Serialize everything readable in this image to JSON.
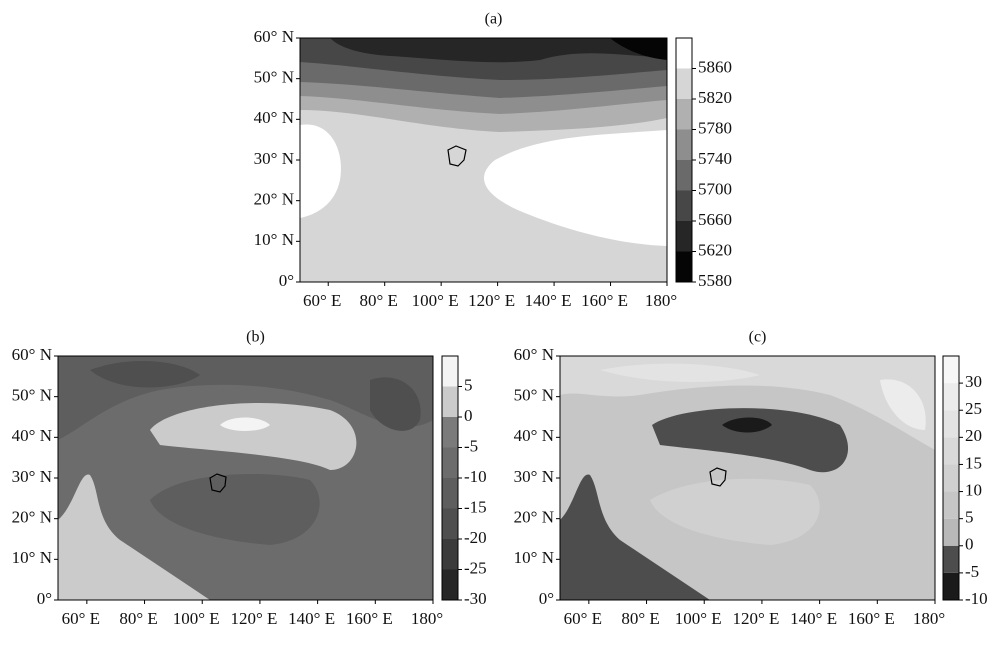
{
  "panels": [
    {
      "label": "(a)",
      "xlim": [
        50,
        180
      ],
      "ylim": [
        0,
        60
      ],
      "lat_ticks": [
        {
          "value": 0,
          "label": "0°"
        },
        {
          "value": 10,
          "label": "10° N"
        },
        {
          "value": 20,
          "label": "20° N"
        },
        {
          "value": 30,
          "label": "30° N"
        },
        {
          "value": 40,
          "label": "40° N"
        },
        {
          "value": 50,
          "label": "50° N"
        },
        {
          "value": 60,
          "label": "60° N"
        }
      ],
      "lon_ticks": [
        {
          "value": 60,
          "label": "60° E"
        },
        {
          "value": 80,
          "label": "80° E"
        },
        {
          "value": 100,
          "label": "100° E"
        },
        {
          "value": 120,
          "label": "120° E"
        },
        {
          "value": 140,
          "label": "140° E"
        },
        {
          "value": 160,
          "label": "160° E"
        },
        {
          "value": 180,
          "label": "180°"
        }
      ],
      "colorbar": {
        "clim": [
          5580,
          5900
        ],
        "ticks": [
          5580,
          5620,
          5660,
          5700,
          5740,
          5780,
          5820,
          5860
        ],
        "colors": [
          "#050505",
          "#262626",
          "#474747",
          "#6a6a6a",
          "#8e8e8e",
          "#b0b0b0",
          "#d6d6d6",
          "#ffffff"
        ]
      }
    },
    {
      "label": "(b)",
      "xlim": [
        50,
        180
      ],
      "ylim": [
        0,
        60
      ],
      "lat_ticks": [
        {
          "value": 0,
          "label": "0°"
        },
        {
          "value": 10,
          "label": "10° N"
        },
        {
          "value": 20,
          "label": "20° N"
        },
        {
          "value": 30,
          "label": "30° N"
        },
        {
          "value": 40,
          "label": "40° N"
        },
        {
          "value": 50,
          "label": "50° N"
        },
        {
          "value": 60,
          "label": "60° N"
        }
      ],
      "lon_ticks": [
        {
          "value": 60,
          "label": "60° E"
        },
        {
          "value": 80,
          "label": "80° E"
        },
        {
          "value": 100,
          "label": "100° E"
        },
        {
          "value": 120,
          "label": "120° E"
        },
        {
          "value": 140,
          "label": "140° E"
        },
        {
          "value": 160,
          "label": "160° E"
        },
        {
          "value": 180,
          "label": "180°"
        }
      ],
      "colorbar": {
        "clim": [
          -30,
          10
        ],
        "ticks": [
          -30,
          -25,
          -20,
          -15,
          -10,
          -5,
          0,
          5
        ],
        "colors": [
          "#262626",
          "#3b3b3b",
          "#4f4f4f",
          "#5e5e5e",
          "#6c6c6c",
          "#7b7b7b",
          "#cbcbcb",
          "#f4f4f4"
        ]
      }
    },
    {
      "label": "(c)",
      "xlim": [
        50,
        180
      ],
      "ylim": [
        0,
        60
      ],
      "lat_ticks": [
        {
          "value": 0,
          "label": "0°"
        },
        {
          "value": 10,
          "label": "10° N"
        },
        {
          "value": 20,
          "label": "20° N"
        },
        {
          "value": 30,
          "label": "30° N"
        },
        {
          "value": 40,
          "label": "40° N"
        },
        {
          "value": 50,
          "label": "50° N"
        },
        {
          "value": 60,
          "label": "60° N"
        }
      ],
      "lon_ticks": [
        {
          "value": 60,
          "label": "60° E"
        },
        {
          "value": 80,
          "label": "80° E"
        },
        {
          "value": 100,
          "label": "100° E"
        },
        {
          "value": 120,
          "label": "120° E"
        },
        {
          "value": 140,
          "label": "140° E"
        },
        {
          "value": 160,
          "label": "160° E"
        },
        {
          "value": 180,
          "label": "180°"
        }
      ],
      "colorbar": {
        "clim": [
          -10,
          35
        ],
        "ticks": [
          -10,
          -5,
          0,
          5,
          10,
          15,
          20,
          25,
          30
        ],
        "colors": [
          "#1a1a1a",
          "#4d4d4d",
          "#b8b8b8",
          "#c6c6c6",
          "#d0d0d0",
          "#d9d9d9",
          "#e3e3e3",
          "#ececec",
          "#f7f7f7"
        ]
      }
    }
  ]
}
